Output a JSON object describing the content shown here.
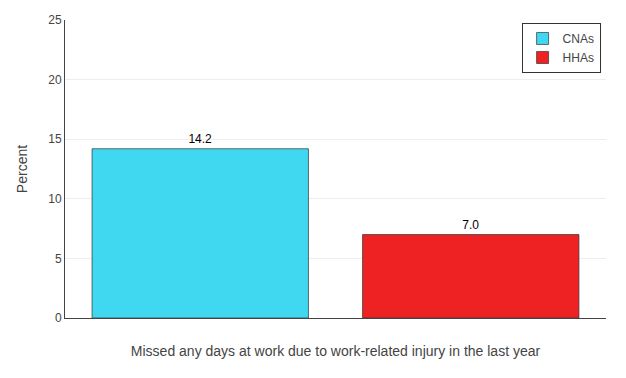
{
  "chart_data": {
    "type": "bar",
    "categories": [
      "CNAs",
      "HHAs"
    ],
    "values": [
      14.2,
      7.0
    ],
    "value_labels": [
      "14.2",
      "7.0"
    ],
    "data_labels": true,
    "colors": [
      "#40D8F0",
      "#EE2222"
    ],
    "xlabel": "Missed any days at work due to work-related injury in the last year",
    "ylabel": "Percent",
    "ylim": [
      0,
      25
    ],
    "yticks": [
      0,
      5,
      10,
      15,
      20,
      25
    ],
    "grid": true,
    "legend": "upper right",
    "tick_labels": "y"
  }
}
